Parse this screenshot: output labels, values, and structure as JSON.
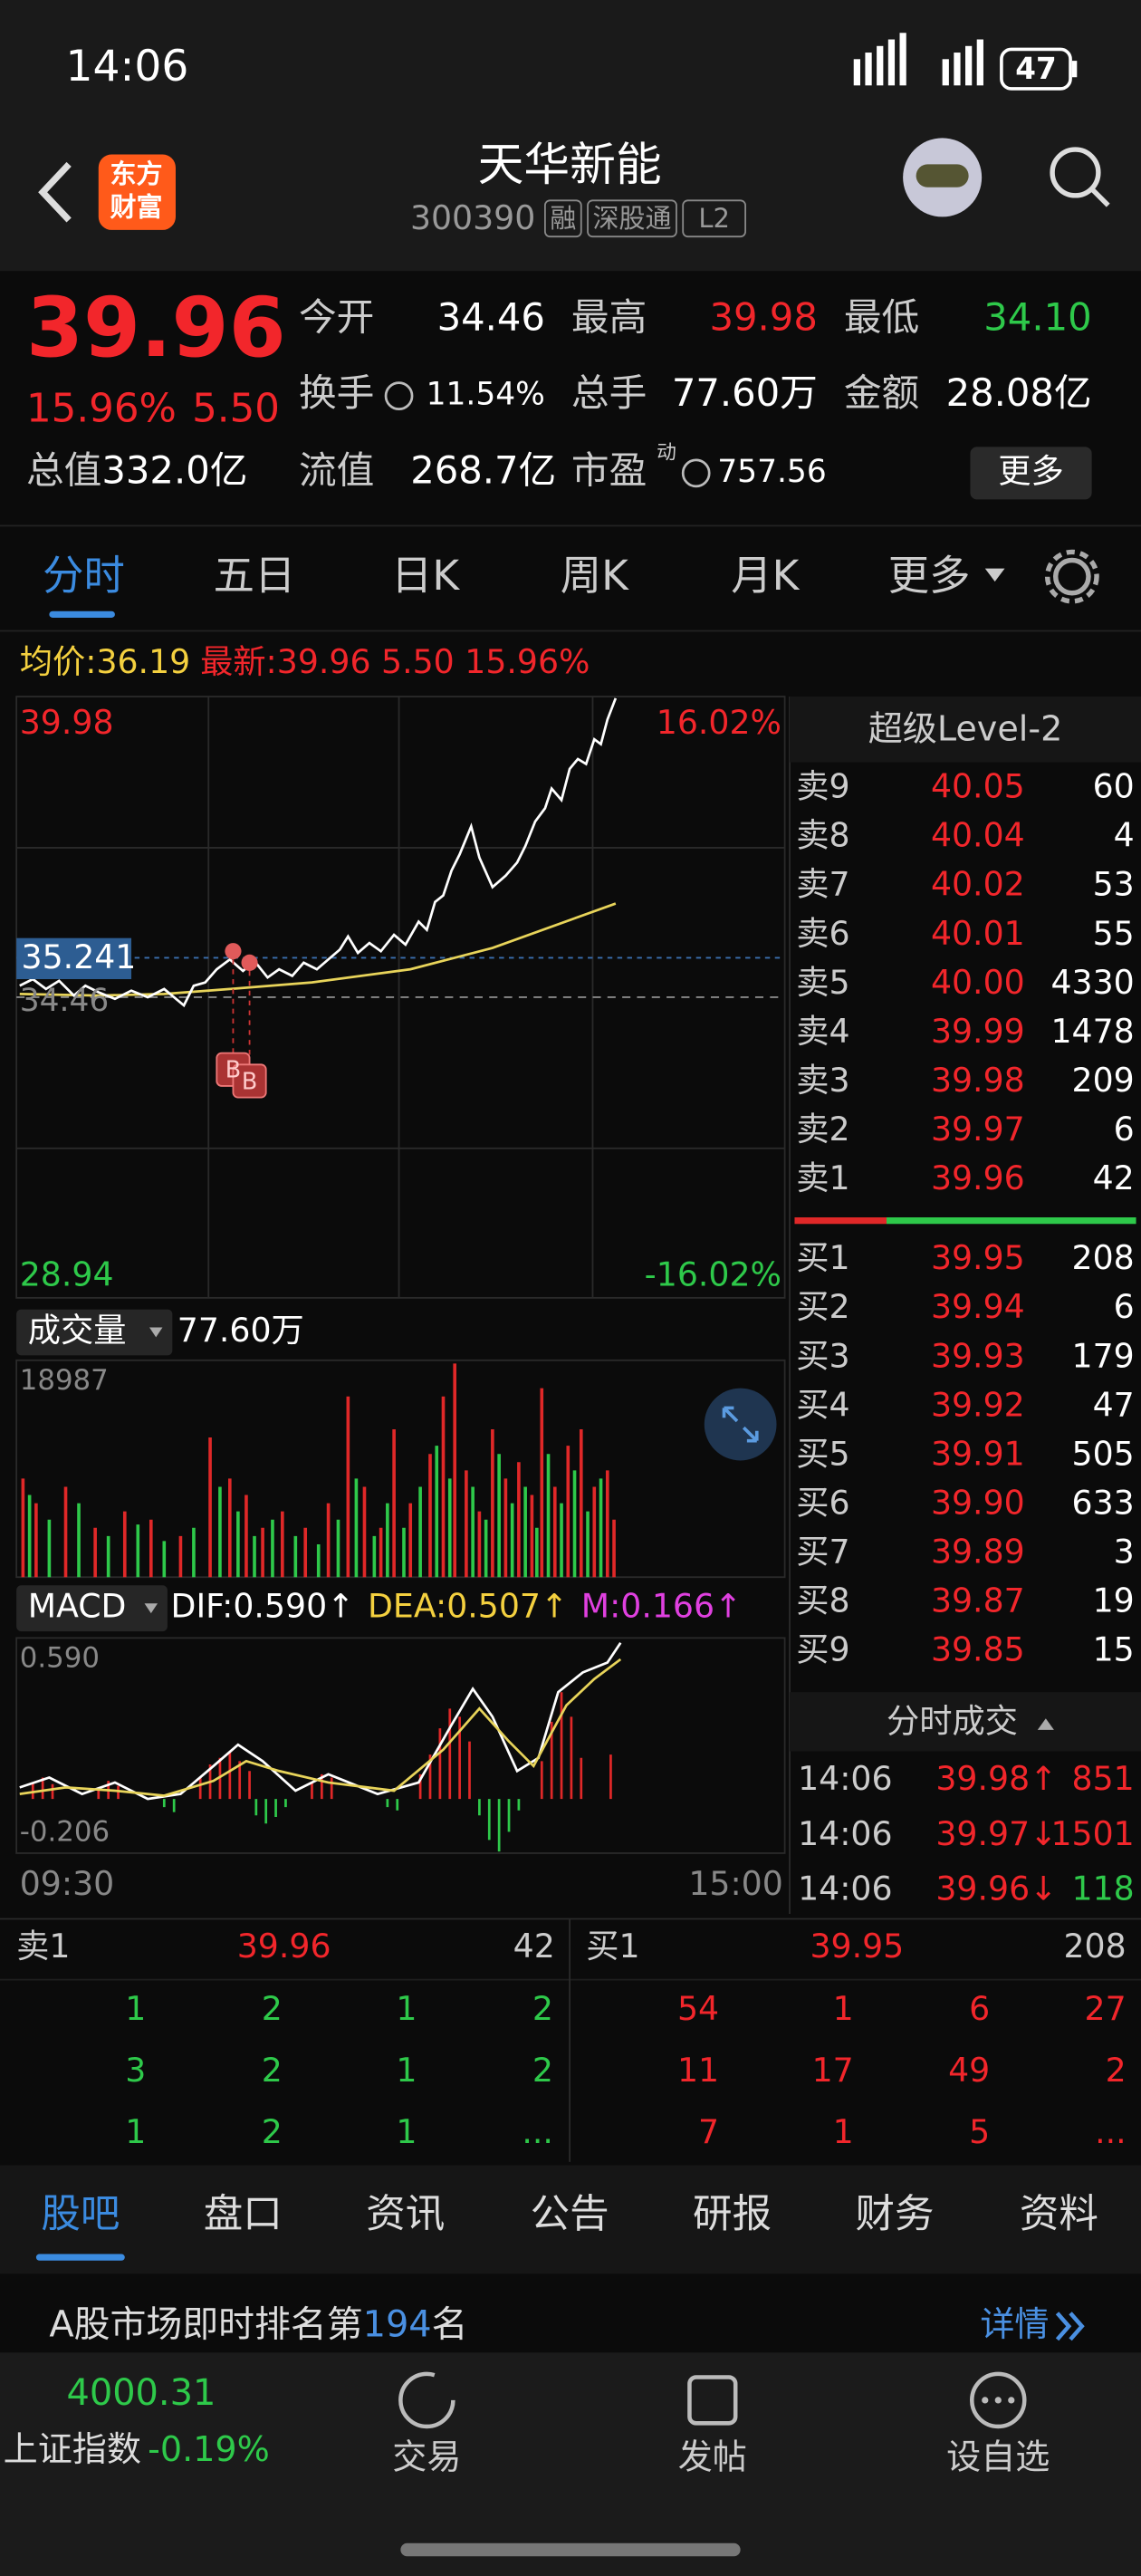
{
  "status_bar": {
    "time": "14:06",
    "battery": "47"
  },
  "header": {
    "logo": [
      "东方",
      "财富"
    ],
    "title": "天华新能",
    "code": "300390",
    "tags": [
      "融",
      "深股通",
      "L2"
    ]
  },
  "quote": {
    "price": "39.96",
    "change_pct": "15.96%",
    "change": "5.50",
    "fields": [
      {
        "label": "今开",
        "value": "34.46"
      },
      {
        "label": "最高",
        "value": "39.98"
      },
      {
        "label": "最低",
        "value": "34.10"
      },
      {
        "label": "换手",
        "value": "11.54%"
      },
      {
        "label": "总手",
        "value": "77.60万"
      },
      {
        "label": "金额",
        "value": "28.08亿"
      },
      {
        "label": "总值",
        "value": "332.0亿"
      },
      {
        "label": "流值",
        "value": "268.7亿"
      },
      {
        "label": "市盈",
        "value": "757.56",
        "superscript": "动"
      }
    ],
    "more": "更多"
  },
  "tabs": [
    "分时",
    "五日",
    "日K",
    "周K",
    "月K",
    "更多"
  ],
  "info_line": {
    "avg_label": "均价:",
    "avg": "36.19",
    "latest_label": "最新:",
    "latest": "39.96 5.50 15.96%"
  },
  "intraday": {
    "y_top": "39.98",
    "y_bottom": "28.94",
    "pct_top": "16.02%",
    "pct_bottom": "-16.02%",
    "cursor": "35.241",
    "prev_close": "34.46",
    "markers": [
      "B",
      "B"
    ]
  },
  "volume": {
    "label": "成交量",
    "total": "77.60万",
    "max": "18987"
  },
  "macd": {
    "label": "MACD",
    "dif": "DIF:0.590↑",
    "dea": "DEA:0.507↑",
    "m": "M:0.166↑",
    "top": "0.590",
    "bottom": "-0.206",
    "time_start": "09:30",
    "time_end": "15:00"
  },
  "order_book": {
    "title": "超级Level-2",
    "asks": [
      {
        "label": "卖9",
        "price": "40.05",
        "vol": "60"
      },
      {
        "label": "卖8",
        "price": "40.04",
        "vol": "4"
      },
      {
        "label": "卖7",
        "price": "40.02",
        "vol": "53"
      },
      {
        "label": "卖6",
        "price": "40.01",
        "vol": "55"
      },
      {
        "label": "卖5",
        "price": "40.00",
        "vol": "4330"
      },
      {
        "label": "卖4",
        "price": "39.99",
        "vol": "1478"
      },
      {
        "label": "卖3",
        "price": "39.98",
        "vol": "209"
      },
      {
        "label": "卖2",
        "price": "39.97",
        "vol": "6"
      },
      {
        "label": "卖1",
        "price": "39.96",
        "vol": "42"
      }
    ],
    "bids": [
      {
        "label": "买1",
        "price": "39.95",
        "vol": "208"
      },
      {
        "label": "买2",
        "price": "39.94",
        "vol": "6"
      },
      {
        "label": "买3",
        "price": "39.93",
        "vol": "179"
      },
      {
        "label": "买4",
        "price": "39.92",
        "vol": "47"
      },
      {
        "label": "买5",
        "price": "39.91",
        "vol": "505"
      },
      {
        "label": "买6",
        "price": "39.90",
        "vol": "633"
      },
      {
        "label": "买7",
        "price": "39.89",
        "vol": "3"
      },
      {
        "label": "买8",
        "price": "39.87",
        "vol": "19"
      },
      {
        "label": "买9",
        "price": "39.85",
        "vol": "15"
      }
    ]
  },
  "trades": {
    "title": "分时成交",
    "rows": [
      {
        "time": "14:06",
        "price": "39.98↑",
        "vol": "851"
      },
      {
        "time": "14:06",
        "price": "39.97↓",
        "vol": "1501"
      },
      {
        "time": "14:06",
        "price": "39.96↓",
        "vol": "118"
      }
    ]
  },
  "depth": {
    "sell": {
      "label": "卖1",
      "price": "39.96",
      "vol": "42",
      "queue": [
        [
          "1",
          "2",
          "1",
          "2"
        ],
        [
          "3",
          "2",
          "1",
          "2"
        ],
        [
          "1",
          "2",
          "1",
          "..."
        ]
      ]
    },
    "buy": {
      "label": "买1",
      "price": "39.95",
      "vol": "208",
      "queue": [
        [
          "54",
          "1",
          "6",
          "27"
        ],
        [
          "11",
          "17",
          "49",
          "2"
        ],
        [
          "7",
          "1",
          "5",
          "..."
        ]
      ]
    }
  },
  "bottom_tabs": [
    "股吧",
    "盘口",
    "资讯",
    "公告",
    "研报",
    "财务",
    "资料"
  ],
  "rank": {
    "prefix": "A股市场即时排名第",
    "number": "194",
    "suffix": "名",
    "details": "详情"
  },
  "nav": {
    "index_value": "4000.31",
    "index_name": "上证指数",
    "index_change": "-0.19%",
    "items": [
      "交易",
      "发帖",
      "设自选"
    ]
  }
}
